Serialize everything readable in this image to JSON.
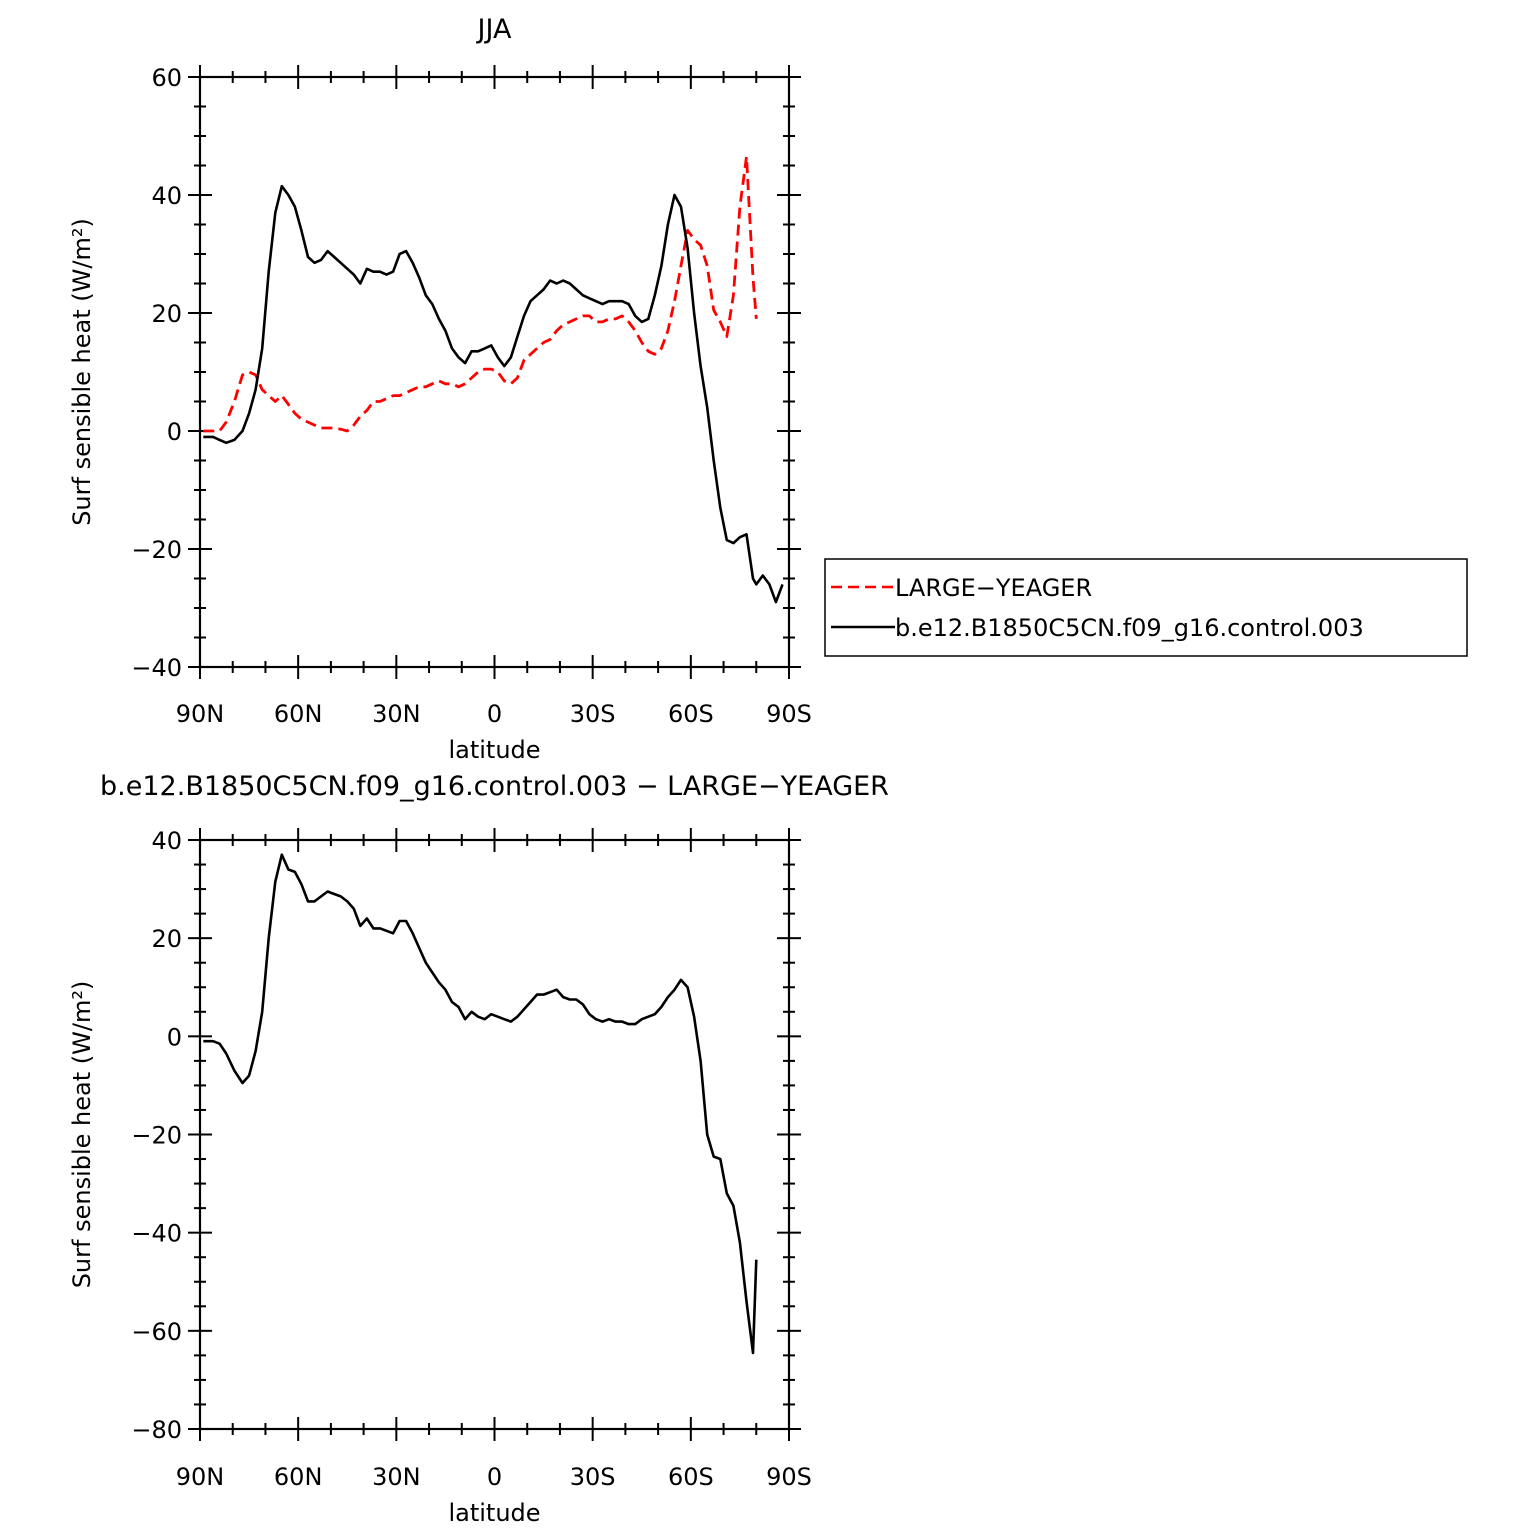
{
  "chart_data": [
    {
      "type": "line",
      "title": "JJA",
      "xlabel": "latitude",
      "ylabel": "Surf sensible heat (W/m²)",
      "x_axis": "latitude in degrees, 90 (90N) to -90 (90S)",
      "xlim": [
        90,
        -90
      ],
      "ylim": [
        -40,
        60
      ],
      "xticks": [
        90,
        60,
        30,
        0,
        -30,
        -60,
        -90
      ],
      "xtick_labels": [
        "90N",
        "60N",
        "30N",
        "0",
        "30S",
        "60S",
        "90S"
      ],
      "yticks": [
        -40,
        -20,
        0,
        20,
        40,
        60
      ],
      "ytick_labels": [
        "−40",
        "−20",
        "0",
        "20",
        "40",
        "60"
      ],
      "legend_position": "right",
      "series": [
        {
          "name": "LARGE−YEAGER",
          "color": "#ff0000",
          "dash": "dashed",
          "x": [
            89,
            86,
            84,
            82,
            79.5,
            77,
            75,
            73,
            71,
            69,
            67,
            65,
            63,
            61,
            59,
            57,
            55,
            53,
            51,
            49,
            47,
            45,
            43,
            41,
            39,
            37,
            35,
            33,
            31,
            29,
            27,
            25,
            23,
            21,
            19,
            17,
            15,
            13,
            11,
            9,
            7,
            5,
            3,
            1,
            -1,
            -3,
            -5,
            -7,
            -9,
            -11,
            -13,
            -15,
            -17,
            -19,
            -21,
            -23,
            -25,
            -27,
            -29,
            -31,
            -33,
            -35,
            -37,
            -39,
            -41,
            -43,
            -45,
            -47,
            -49,
            -51,
            -53,
            -55,
            -57,
            -59,
            -61,
            -63,
            -65,
            -67,
            -69,
            -71,
            -73,
            -75,
            -77,
            -79,
            -80
          ],
          "y": [
            0,
            0,
            0,
            1.5,
            5,
            9.5,
            10,
            9.5,
            7,
            6,
            5,
            6,
            4.5,
            3,
            2,
            1.5,
            1,
            0.5,
            0.5,
            0.5,
            0.3,
            0,
            1,
            2.5,
            3.5,
            5,
            5,
            5.5,
            6,
            6,
            6.5,
            7,
            7.5,
            7.5,
            8,
            8.5,
            8,
            8,
            7.5,
            8,
            9,
            10,
            10.5,
            10.5,
            10,
            8.5,
            8,
            9,
            12,
            13,
            14,
            15,
            15.5,
            17,
            18,
            18.5,
            19,
            19.5,
            19.5,
            18.5,
            18.5,
            19,
            19,
            19.5,
            18.5,
            17,
            15,
            13.5,
            13,
            14,
            17,
            22,
            28,
            34,
            32.5,
            31.5,
            28,
            20.5,
            18.5,
            16,
            23,
            38,
            46.5,
            26,
            19
          ]
        },
        {
          "name": "b.e12.B1850C5CN.f09_g16.control.003",
          "color": "#000000",
          "dash": "solid",
          "x": [
            89,
            86,
            84,
            82,
            79.5,
            77,
            75,
            73,
            71,
            69,
            67,
            65,
            63,
            61,
            59,
            57,
            55,
            53,
            51,
            49,
            47,
            45,
            43,
            41,
            39,
            37,
            35,
            33,
            31,
            29,
            27,
            25,
            23,
            21,
            19,
            17,
            15,
            13,
            11,
            9,
            7,
            5,
            3,
            1,
            -1,
            -3,
            -5,
            -7,
            -9,
            -11,
            -13,
            -15,
            -17,
            -19,
            -21,
            -23,
            -25,
            -27,
            -29,
            -31,
            -33,
            -35,
            -37,
            -39,
            -41,
            -43,
            -45,
            -47,
            -49,
            -51,
            -53,
            -55,
            -57,
            -59,
            -61,
            -63,
            -65,
            -67,
            -69,
            -71,
            -73,
            -75,
            -77,
            -79,
            -80,
            -82,
            -84,
            -86,
            -88
          ],
          "y": [
            -1,
            -1,
            -1.5,
            -2,
            -1.5,
            0,
            3,
            7,
            14,
            27,
            37,
            41.5,
            40,
            38,
            34,
            29.5,
            28.5,
            29,
            30.5,
            29.5,
            28.5,
            27.5,
            26.5,
            25,
            27.5,
            27,
            27,
            26.5,
            27,
            30,
            30.5,
            28.5,
            26,
            23,
            21.5,
            19,
            17,
            14,
            12.5,
            11.5,
            13.5,
            13.5,
            14,
            14.5,
            12.5,
            11,
            12.5,
            16,
            19.5,
            22,
            23,
            24,
            25.5,
            25,
            25.5,
            25,
            24,
            23,
            22.5,
            22,
            21.5,
            22,
            22,
            22,
            21.5,
            19.5,
            18.5,
            19,
            23,
            28,
            35,
            40,
            38,
            31,
            20,
            11,
            4,
            -5,
            -13,
            -18.5,
            -19,
            -18,
            -17.5,
            -25,
            -26,
            -24.5,
            -26,
            -29,
            -26
          ]
        }
      ]
    },
    {
      "type": "line",
      "title": "b.e12.B1850C5CN.f09_g16.control.003 − LARGE−YEAGER",
      "xlabel": "latitude",
      "ylabel": "Surf sensible heat (W/m²)",
      "xlim": [
        90,
        -90
      ],
      "ylim": [
        -80,
        40
      ],
      "xticks": [
        90,
        60,
        30,
        0,
        -30,
        -60,
        -90
      ],
      "xtick_labels": [
        "90N",
        "60N",
        "30N",
        "0",
        "30S",
        "60S",
        "90S"
      ],
      "yticks": [
        -80,
        -60,
        -40,
        -20,
        0,
        20,
        40
      ],
      "ytick_labels": [
        "−80",
        "−60",
        "−40",
        "−20",
        "0",
        "20",
        "40"
      ],
      "series": [
        {
          "color": "#000000",
          "dash": "solid",
          "x": [
            89,
            86,
            84,
            82,
            79.5,
            77,
            75,
            73,
            71,
            69,
            67,
            65,
            63,
            61,
            59,
            57,
            55,
            53,
            51,
            49,
            47,
            45,
            43,
            41,
            39,
            37,
            35,
            33,
            31,
            29,
            27,
            25,
            23,
            21,
            19,
            17,
            15,
            13,
            11,
            9,
            7,
            5,
            3,
            1,
            -1,
            -3,
            -5,
            -7,
            -9,
            -11,
            -13,
            -15,
            -17,
            -19,
            -21,
            -23,
            -25,
            -27,
            -29,
            -31,
            -33,
            -35,
            -37,
            -39,
            -41,
            -43,
            -45,
            -47,
            -49,
            -51,
            -53,
            -55,
            -57,
            -59,
            -61,
            -63,
            -65,
            -67,
            -69,
            -71,
            -73,
            -75,
            -77,
            -79,
            -80
          ],
          "y": [
            -1,
            -1,
            -1.5,
            -3.5,
            -7,
            -9.5,
            -8,
            -3,
            5,
            20,
            31.5,
            37,
            34,
            33.5,
            31,
            27.5,
            27.5,
            28.5,
            29.5,
            29,
            28.5,
            27.5,
            26,
            22.5,
            24,
            22,
            22,
            21.5,
            21,
            23.5,
            23.5,
            21,
            18,
            15,
            13,
            11,
            9.5,
            7,
            6,
            3.5,
            5,
            4,
            3.5,
            4.5,
            4,
            3.5,
            3,
            4,
            5.5,
            7,
            8.5,
            8.5,
            9,
            9.5,
            8,
            7.5,
            7.5,
            6.5,
            4.5,
            3.5,
            3,
            3.5,
            3,
            3,
            2.5,
            2.5,
            3.5,
            4,
            4.5,
            6,
            8,
            9.5,
            11.5,
            10,
            4,
            -5,
            -20,
            -24.5,
            -25,
            -32,
            -34.5,
            -42,
            -54,
            -64.5,
            -45.5
          ]
        }
      ]
    }
  ]
}
